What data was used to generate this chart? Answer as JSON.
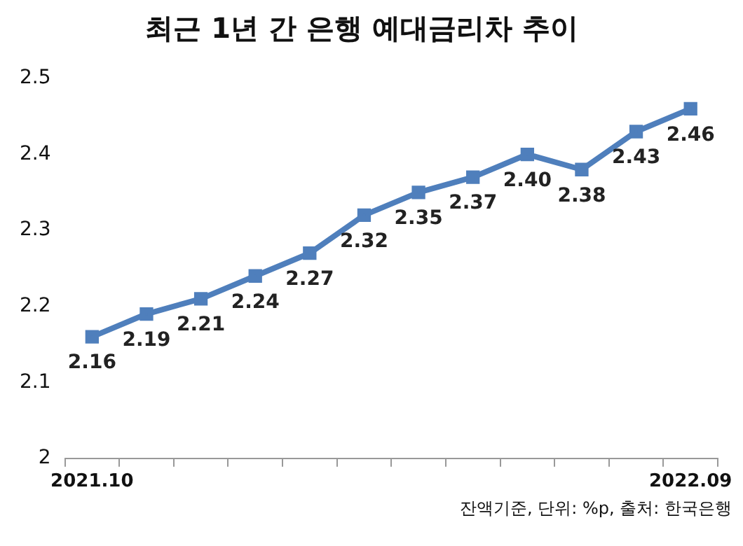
{
  "chart_data": {
    "type": "line",
    "title": "최근 1년 간 은행 예대금리차 추이",
    "categories": [
      "2021.10",
      null,
      null,
      null,
      null,
      null,
      null,
      null,
      null,
      null,
      null,
      "2022.09"
    ],
    "series": [
      {
        "color": "#4f7fbc",
        "values": [
          2.16,
          2.19,
          2.21,
          2.24,
          2.27,
          2.32,
          2.35,
          2.37,
          2.4,
          2.38,
          2.43,
          2.46
        ],
        "value_labels": [
          "2.16",
          "2.19",
          "2.21",
          "2.24",
          "2.27",
          "2.32",
          "2.35",
          "2.37",
          "2.40",
          "2.38",
          "2.43",
          "2.46"
        ]
      }
    ],
    "ylim": [
      2,
      2.5
    ],
    "yticks": [
      2,
      2.1,
      2.2,
      2.3,
      2.4,
      2.5
    ],
    "grid": false,
    "legend": false,
    "marker": "square",
    "line_style": "solid",
    "annotations": [
      "잔액기준, 단위: %p, 출처: 한국은행"
    ]
  }
}
